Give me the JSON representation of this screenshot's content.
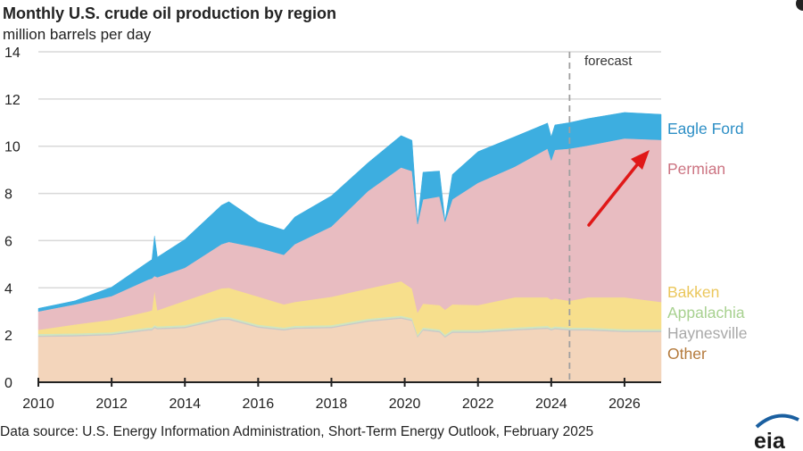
{
  "chart_data": {
    "type": "area",
    "stacked": true,
    "title": "Monthly U.S. crude oil production by region",
    "subtitle": "million barrels per day",
    "xlabel": "",
    "ylabel": "",
    "xlim": [
      2010,
      2027
    ],
    "ylim": [
      0,
      14
    ],
    "x_ticks": [
      "2010",
      "2012",
      "2014",
      "2016",
      "2018",
      "2020",
      "2022",
      "2024",
      "2026"
    ],
    "y_ticks": [
      "0",
      "2",
      "4",
      "6",
      "8",
      "10",
      "12",
      "14"
    ],
    "grid": true,
    "legend_placement": "right (inline labels)",
    "forecast_start": 2024.5,
    "forecast_label": "forecast",
    "annotation": "red arrow pointing up-right toward Permian top",
    "source": "Data source: U.S. Energy Information Administration, Short-Term Energy Outlook, February 2025",
    "logo": "eia",
    "x": [
      2010,
      2011,
      2012,
      2013,
      2013.1,
      2013.17,
      2013.25,
      2014,
      2015,
      2015.2,
      2016,
      2016.7,
      2017,
      2018,
      2019,
      2019.9,
      2020.2,
      2020.35,
      2020.5,
      2020.95,
      2021.1,
      2021.3,
      2022,
      2023,
      2023.9,
      2024.0,
      2024.1,
      2024.5,
      2025,
      2026,
      2027
    ],
    "series": [
      {
        "name": "Other",
        "color": "#f3d5bb",
        "label_color": "#b47a3c",
        "values": [
          1.93,
          1.95,
          2.0,
          2.2,
          2.2,
          2.3,
          2.25,
          2.3,
          2.65,
          2.65,
          2.32,
          2.2,
          2.27,
          2.3,
          2.57,
          2.7,
          2.6,
          1.9,
          2.2,
          2.12,
          1.9,
          2.1,
          2.1,
          2.2,
          2.27,
          2.2,
          2.25,
          2.2,
          2.2,
          2.13,
          2.13
        ]
      },
      {
        "name": "Haynesville",
        "color": "#c9c9c9",
        "label_color": "#a9a9a9",
        "values": [
          0.05,
          0.05,
          0.05,
          0.05,
          0.05,
          0.05,
          0.05,
          0.05,
          0.05,
          0.05,
          0.05,
          0.05,
          0.05,
          0.05,
          0.05,
          0.05,
          0.05,
          0.05,
          0.05,
          0.05,
          0.05,
          0.05,
          0.05,
          0.05,
          0.05,
          0.05,
          0.05,
          0.05,
          0.05,
          0.05,
          0.05
        ]
      },
      {
        "name": "Appalachia",
        "color": "#cfe6c0",
        "label_color": "#a8d190",
        "values": [
          0.07,
          0.07,
          0.07,
          0.07,
          0.07,
          0.07,
          0.07,
          0.07,
          0.07,
          0.07,
          0.07,
          0.07,
          0.07,
          0.07,
          0.07,
          0.07,
          0.07,
          0.07,
          0.07,
          0.07,
          0.07,
          0.07,
          0.07,
          0.07,
          0.07,
          0.07,
          0.07,
          0.07,
          0.07,
          0.07,
          0.07
        ]
      },
      {
        "name": "Bakken",
        "color": "#f7df8c",
        "label_color": "#ebc75c",
        "values": [
          0.17,
          0.38,
          0.53,
          0.68,
          0.73,
          1.48,
          0.68,
          1.03,
          1.21,
          1.23,
          1.19,
          0.98,
          1.01,
          1.2,
          1.28,
          1.46,
          1.25,
          0.93,
          1.01,
          1.03,
          1.05,
          1.08,
          1.05,
          1.28,
          1.21,
          1.18,
          1.18,
          1.13,
          1.28,
          1.35,
          1.15
        ]
      },
      {
        "name": "Permian",
        "color": "#e8bcc1",
        "label_color": "#cc7482",
        "values": [
          0.78,
          0.85,
          1.0,
          1.35,
          1.35,
          0.6,
          1.4,
          1.4,
          1.87,
          1.95,
          2.07,
          2.1,
          2.45,
          2.98,
          4.13,
          4.82,
          4.98,
          3.75,
          4.42,
          4.6,
          3.73,
          4.45,
          5.18,
          5.53,
          6.3,
          5.9,
          6.3,
          6.45,
          6.43,
          6.73,
          6.87
        ]
      },
      {
        "name": "Eagle Ford",
        "color": "#3daee0",
        "label_color": "#2e8fc6",
        "values": [
          0.13,
          0.15,
          0.38,
          0.75,
          0.8,
          1.7,
          0.85,
          1.2,
          1.65,
          1.7,
          1.1,
          1.05,
          1.15,
          1.3,
          1.2,
          1.35,
          1.3,
          0.1,
          1.15,
          1.08,
          0.05,
          1.05,
          1.32,
          1.27,
          1.08,
          1.0,
          1.05,
          1.1,
          1.14,
          1.1,
          1.08
        ]
      }
    ]
  },
  "colors": {
    "grid": "#d9d9d9",
    "axis": "#222222",
    "forecast_line": "#a0a0a0",
    "arrow": "#e01818",
    "logo": "#1a5fa0"
  }
}
